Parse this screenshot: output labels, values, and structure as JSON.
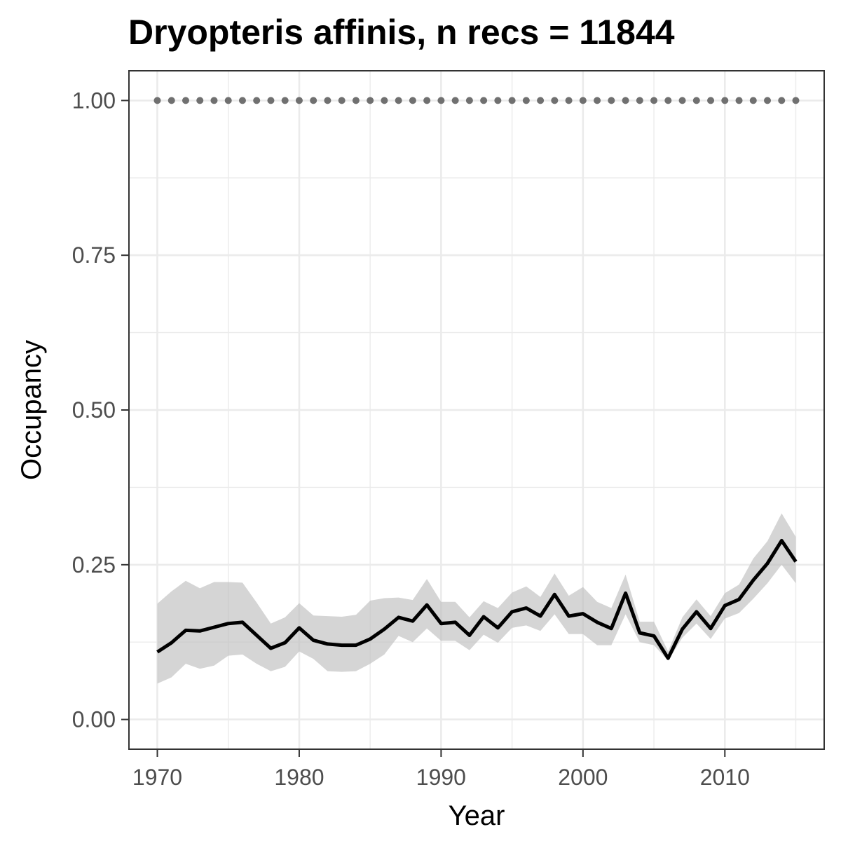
{
  "chart_data": {
    "type": "line",
    "title": "Dryopteris affinis, n recs = 11844",
    "xlabel": "Year",
    "ylabel": "Occupancy",
    "xlim": [
      1968,
      2017
    ],
    "ylim": [
      -0.048,
      1.048
    ],
    "x_ticks": [
      1970,
      1980,
      1990,
      2000,
      2010
    ],
    "x_tick_labels": [
      "1970",
      "1980",
      "1990",
      "2000",
      "2010"
    ],
    "y_ticks": [
      0,
      0.25,
      0.5,
      0.75,
      1
    ],
    "y_tick_labels": [
      "0.00",
      "0.25",
      "0.50",
      "0.75",
      "1.00"
    ],
    "grid": true,
    "theme": "bw",
    "colors": {
      "line": "#000000",
      "ribbon": "#bebebe",
      "reference": "#707070",
      "grid": "#ebebeb",
      "border": "#333333"
    },
    "x": [
      1970,
      1971,
      1972,
      1973,
      1974,
      1975,
      1976,
      1977,
      1978,
      1979,
      1980,
      1981,
      1982,
      1983,
      1984,
      1985,
      1986,
      1987,
      1988,
      1989,
      1990,
      1991,
      1992,
      1993,
      1994,
      1995,
      1996,
      1997,
      1998,
      1999,
      2000,
      2001,
      2002,
      2003,
      2004,
      2005,
      2006,
      2007,
      2008,
      2009,
      2010,
      2011,
      2012,
      2013,
      2014,
      2015
    ],
    "series": [
      {
        "values": [
          0.109,
          0.124,
          0.144,
          0.143,
          0.149,
          0.155,
          0.157,
          0.136,
          0.115,
          0.124,
          0.148,
          0.128,
          0.122,
          0.12,
          0.12,
          0.13,
          0.146,
          0.165,
          0.159,
          0.185,
          0.155,
          0.157,
          0.136,
          0.166,
          0.148,
          0.174,
          0.18,
          0.167,
          0.202,
          0.167,
          0.171,
          0.157,
          0.147,
          0.204,
          0.14,
          0.135,
          0.099,
          0.146,
          0.174,
          0.147,
          0.184,
          0.194,
          0.225,
          0.252,
          0.289,
          0.255
        ],
        "lower": [
          0.058,
          0.068,
          0.09,
          0.082,
          0.087,
          0.103,
          0.105,
          0.09,
          0.078,
          0.085,
          0.11,
          0.098,
          0.078,
          0.077,
          0.078,
          0.09,
          0.105,
          0.135,
          0.125,
          0.147,
          0.127,
          0.127,
          0.112,
          0.137,
          0.124,
          0.148,
          0.152,
          0.143,
          0.17,
          0.138,
          0.138,
          0.12,
          0.12,
          0.17,
          0.125,
          0.12,
          0.095,
          0.132,
          0.155,
          0.13,
          0.163,
          0.172,
          0.195,
          0.22,
          0.25,
          0.22
        ],
        "upper": [
          0.187,
          0.207,
          0.224,
          0.212,
          0.222,
          0.222,
          0.221,
          0.189,
          0.155,
          0.165,
          0.188,
          0.168,
          0.167,
          0.166,
          0.169,
          0.192,
          0.196,
          0.197,
          0.193,
          0.227,
          0.19,
          0.19,
          0.165,
          0.191,
          0.18,
          0.205,
          0.215,
          0.198,
          0.236,
          0.2,
          0.214,
          0.19,
          0.18,
          0.234,
          0.158,
          0.158,
          0.11,
          0.165,
          0.194,
          0.167,
          0.204,
          0.218,
          0.26,
          0.288,
          0.333,
          0.295
        ]
      }
    ],
    "reference_line": {
      "y": 1.0,
      "x": [
        1970,
        1971,
        1972,
        1973,
        1974,
        1975,
        1976,
        1977,
        1978,
        1979,
        1980,
        1981,
        1982,
        1983,
        1984,
        1985,
        1986,
        1987,
        1988,
        1989,
        1990,
        1991,
        1992,
        1993,
        1994,
        1995,
        1996,
        1997,
        1998,
        1999,
        2000,
        2001,
        2002,
        2003,
        2004,
        2005,
        2006,
        2007,
        2008,
        2009,
        2010,
        2011,
        2012,
        2013,
        2014,
        2015
      ],
      "style": "dotted"
    }
  }
}
